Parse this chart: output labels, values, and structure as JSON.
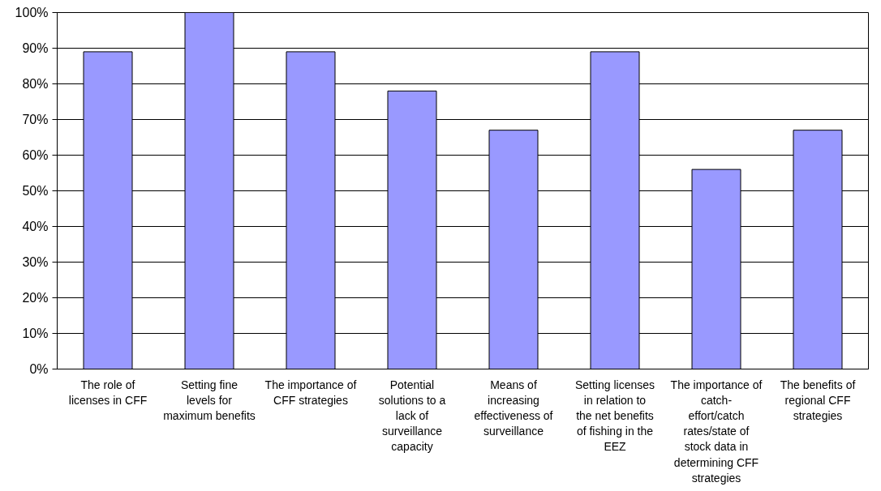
{
  "chart_data": {
    "type": "bar",
    "categories": [
      "The role of licenses in CFF",
      "Setting fine levels for maximum benefits",
      "The importance of CFF strategies",
      "Potential solutions to a lack of surveillance capacity",
      "Means of increasing effectiveness of surveillance",
      "Setting licenses in relation to the net benefits of fishing in the EEZ",
      "The importance of catch-effort/catch rates/state of stock data in determining CFF strategies",
      "The benefits of regional CFF strategies"
    ],
    "values": [
      89,
      100,
      89,
      78,
      67,
      89,
      56,
      67
    ],
    "color": "#9999ff",
    "ylim": [
      0,
      100
    ],
    "yticks": [
      {
        "value": 0,
        "label": "0%"
      },
      {
        "value": 10,
        "label": "10%"
      },
      {
        "value": 20,
        "label": "20%"
      },
      {
        "value": 30,
        "label": "30%"
      },
      {
        "value": 40,
        "label": "40%"
      },
      {
        "value": 50,
        "label": "50%"
      },
      {
        "value": 60,
        "label": "60%"
      },
      {
        "value": 70,
        "label": "70%"
      },
      {
        "value": 80,
        "label": "80%"
      },
      {
        "value": 90,
        "label": "90%"
      },
      {
        "value": 100,
        "label": "100%"
      }
    ],
    "grid": "y"
  }
}
